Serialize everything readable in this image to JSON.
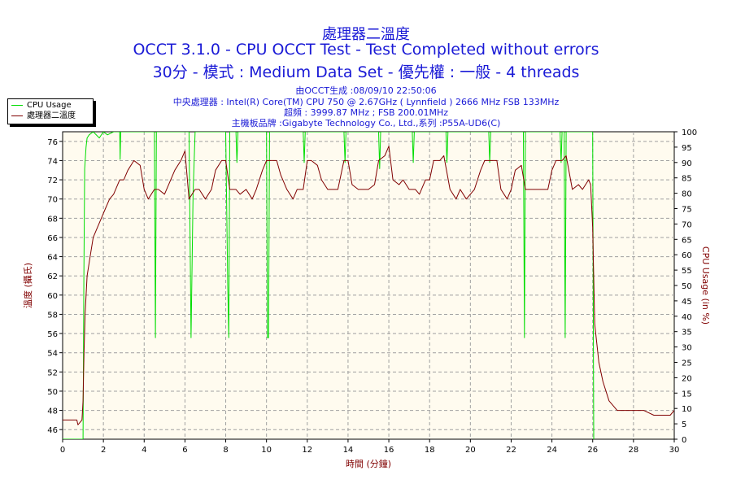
{
  "header": {
    "title_cn": "處理器二溫度",
    "title_main": "OCCT 3.1.0 - CPU OCCT Test - Test Completed without errors",
    "subtitle": "30分 - 模式 : Medium Data Set - 優先權 : 一般 - 4 threads",
    "generated": "由OCCT生成 :08/09/10 22:50:06",
    "cpu": "中央處理器 : Intel(R) Core(TM) CPU 750 @ 2.67GHz ( Lynnfield ) 2666 MHz FSB 133MHz",
    "freq": "超頻 : 3999.87 MHz ; FSB 200.01MHz",
    "board": "主機板品牌 :Gigabyte Technology Co., Ltd.,系列 :P55A-UD6(C)"
  },
  "legend": {
    "items": [
      {
        "label": "CPU Usage",
        "color": "#00dd00"
      },
      {
        "label": "處理器二溫度",
        "color": "#800000"
      }
    ]
  },
  "chart_data": {
    "type": "line",
    "xlabel": "時間 (分鐘)",
    "ylabel_left": "溫度 (攝氏)",
    "ylabel_right": "CPU Usage (in %)",
    "xlim": [
      0,
      30
    ],
    "ylim_left": [
      45,
      77
    ],
    "ylim_right": [
      0,
      100
    ],
    "x_ticks": [
      0,
      2,
      4,
      6,
      8,
      10,
      12,
      14,
      16,
      18,
      20,
      22,
      24,
      26,
      28,
      30
    ],
    "y_left_ticks": [
      46,
      48,
      50,
      52,
      54,
      56,
      58,
      60,
      62,
      64,
      66,
      68,
      70,
      72,
      74,
      76
    ],
    "y_right_ticks": [
      0,
      5,
      10,
      15,
      20,
      25,
      30,
      35,
      40,
      45,
      50,
      55,
      60,
      65,
      70,
      75,
      80,
      85,
      90,
      95,
      100
    ],
    "grid": true,
    "legend_position": "top-left",
    "colors": {
      "plot_bg": "#fffbef",
      "grid": "#a0a0a0",
      "left_axis_text": "#800000",
      "right_axis_text": "#800000"
    },
    "series": [
      {
        "name": "處理器二溫度",
        "axis": "left",
        "color": "#800000",
        "x": [
          0,
          0.7,
          0.75,
          0.95,
          1.0,
          1.05,
          1.1,
          1.2,
          1.35,
          1.5,
          1.7,
          1.9,
          2.1,
          2.3,
          2.5,
          2.8,
          3.0,
          3.2,
          3.5,
          3.8,
          4.0,
          4.2,
          4.5,
          4.7,
          5.0,
          5.3,
          5.5,
          5.8,
          6.0,
          6.2,
          6.5,
          6.7,
          7.0,
          7.3,
          7.5,
          7.8,
          8.0,
          8.2,
          8.5,
          8.7,
          9.0,
          9.3,
          9.5,
          9.8,
          10.0,
          10.2,
          10.5,
          10.7,
          11.0,
          11.3,
          11.5,
          11.8,
          12.0,
          12.2,
          12.5,
          12.7,
          13.0,
          13.3,
          13.5,
          13.8,
          14.0,
          14.2,
          14.5,
          14.7,
          15.0,
          15.3,
          15.5,
          15.8,
          16.0,
          16.2,
          16.5,
          16.7,
          17.0,
          17.3,
          17.5,
          17.8,
          18.0,
          18.2,
          18.5,
          18.7,
          19.0,
          19.3,
          19.5,
          19.8,
          20.0,
          20.2,
          20.5,
          20.7,
          21.0,
          21.3,
          21.5,
          21.8,
          22.0,
          22.2,
          22.5,
          22.7,
          23.0,
          23.3,
          23.5,
          23.8,
          24.0,
          24.2,
          24.5,
          24.7,
          25.0,
          25.3,
          25.5,
          25.8,
          25.9,
          26.0,
          26.1,
          26.3,
          26.5,
          26.8,
          27.0,
          27.2,
          27.5,
          28.0,
          28.5,
          29.0,
          29.5,
          29.8,
          30.0
        ],
        "values": [
          47,
          47,
          46.5,
          47,
          49,
          54,
          58,
          62,
          64,
          66,
          67,
          68,
          69,
          70,
          70.5,
          72,
          72,
          73,
          74,
          73.5,
          71,
          70,
          71,
          71,
          70.5,
          72,
          73,
          74,
          75,
          70,
          71,
          71,
          70,
          71,
          73,
          74,
          74,
          71,
          71,
          70.5,
          71,
          70,
          71,
          73,
          74,
          74,
          74,
          72.5,
          71,
          70,
          71,
          71,
          74,
          74,
          73.5,
          72,
          71,
          71,
          71,
          74,
          74,
          71.5,
          71,
          71,
          71,
          71.5,
          74,
          74.5,
          75.5,
          72,
          71.5,
          72,
          71,
          71,
          70.5,
          72,
          72,
          74,
          74,
          74.5,
          71,
          70,
          71,
          70,
          70.5,
          71,
          73,
          74,
          74,
          74,
          71,
          70,
          71,
          73,
          73.5,
          71,
          71,
          71,
          71,
          71,
          73,
          74,
          74,
          74.5,
          71,
          71.5,
          71,
          72,
          71.5,
          67,
          57,
          53,
          51,
          49,
          48.5,
          48,
          48,
          48,
          48,
          47.5,
          47.5,
          47.5,
          48
        ]
      },
      {
        "name": "CPU Usage",
        "axis": "right",
        "color": "#00dd00",
        "x": [
          0,
          1.0,
          1.04,
          1.08,
          1.15,
          1.2,
          1.3,
          1.5,
          1.8,
          2.0,
          2.2,
          2.5,
          2.8,
          2.82,
          2.85,
          3.0,
          3.5,
          4.0,
          4.5,
          4.55,
          4.6,
          4.65,
          5.0,
          5.5,
          6.0,
          6.2,
          6.3,
          6.4,
          6.5,
          7.0,
          7.5,
          8.0,
          8.1,
          8.15,
          8.2,
          8.4,
          8.5,
          8.55,
          8.6,
          8.8,
          9.0,
          9.5,
          10.0,
          10.05,
          10.1,
          10.15,
          10.5,
          11.0,
          11.5,
          11.8,
          11.85,
          11.9,
          12.0,
          12.5,
          13.0,
          13.5,
          13.8,
          13.85,
          13.9,
          14.0,
          14.5,
          15.0,
          15.5,
          15.55,
          15.6,
          16.0,
          16.5,
          17.0,
          17.15,
          17.2,
          17.25,
          17.5,
          18.0,
          18.5,
          18.8,
          18.85,
          18.9,
          19.0,
          19.5,
          20.0,
          20.5,
          20.9,
          20.95,
          21.0,
          21.5,
          22.0,
          22.6,
          22.65,
          22.7,
          23.0,
          23.5,
          24.0,
          24.4,
          24.45,
          24.5,
          24.6,
          24.65,
          24.7,
          25.0,
          25.5,
          25.9,
          26.0,
          26.05
        ],
        "values": [
          0,
          0,
          52,
          88,
          95,
          98,
          99,
          100,
          98,
          100,
          99,
          100,
          100,
          91,
          100,
          100,
          100,
          100,
          100,
          33,
          100,
          100,
          100,
          100,
          100,
          100,
          33,
          80,
          100,
          100,
          100,
          100,
          50,
          33,
          100,
          100,
          100,
          90,
          100,
          100,
          100,
          100,
          100,
          33,
          33,
          100,
          100,
          100,
          100,
          100,
          90,
          100,
          100,
          100,
          100,
          100,
          100,
          90,
          100,
          100,
          100,
          100,
          100,
          88,
          100,
          100,
          100,
          100,
          100,
          90,
          100,
          100,
          100,
          100,
          100,
          90,
          100,
          100,
          100,
          100,
          100,
          100,
          90,
          100,
          100,
          100,
          100,
          33,
          100,
          100,
          100,
          100,
          100,
          90,
          100,
          100,
          33,
          100,
          100,
          100,
          100,
          100,
          0
        ]
      }
    ]
  }
}
